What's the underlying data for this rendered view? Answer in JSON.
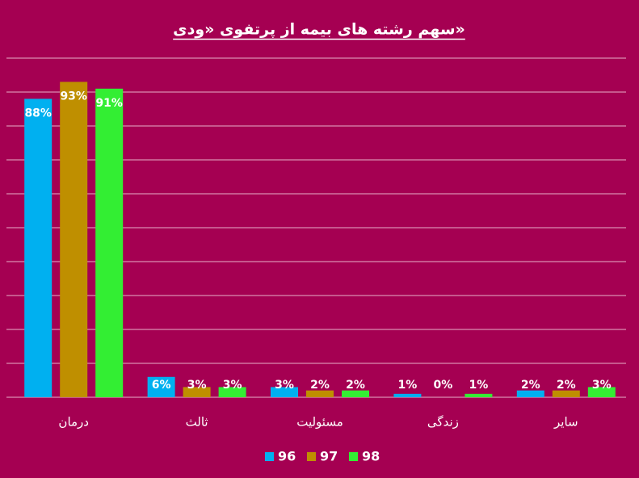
{
  "chart_data": {
    "type": "bar",
    "title": "سهم رشته های بیمه از پرتفوی «ودی»",
    "categories": [
      "درمان",
      "ثالث",
      "مسئولیت",
      "زندگی",
      "سایر"
    ],
    "series": [
      {
        "name": "96",
        "color": "#00B0F0",
        "values": [
          88,
          6,
          3,
          1,
          2
        ],
        "value_labels": [
          "88%",
          "6%",
          "3%",
          "1%",
          "2%"
        ]
      },
      {
        "name": "97",
        "color": "#BF8F00",
        "values": [
          93,
          3,
          2,
          0,
          2
        ],
        "value_labels": [
          "93%",
          "3%",
          "2%",
          "0%",
          "2%"
        ]
      },
      {
        "name": "98",
        "color": "#33EE33",
        "values": [
          91,
          3,
          2,
          1,
          3
        ],
        "value_labels": [
          "91%",
          "3%",
          "2%",
          "1%",
          "3%"
        ]
      }
    ],
    "ylim": [
      0,
      100
    ],
    "yticks": [
      0,
      10,
      20,
      30,
      40,
      50,
      60,
      70,
      80,
      90,
      100
    ],
    "grid": true,
    "legend": "bottom"
  }
}
